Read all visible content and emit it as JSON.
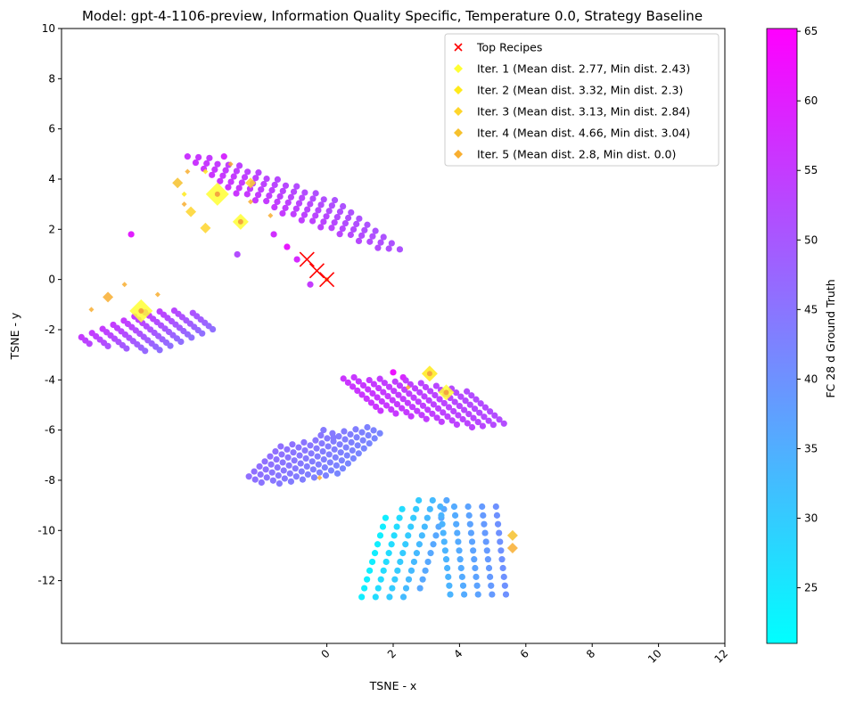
{
  "chart_data": {
    "type": "scatter",
    "title": "Model: gpt-4-1106-preview, Information Quality Specific, Temperature 0.0, Strategy Baseline",
    "xlabel": "TSNE - x",
    "ylabel": "TSNE - y",
    "xlim": [
      -8,
      12
    ],
    "ylim": [
      -14.5,
      10
    ],
    "xticks": [
      0,
      2,
      4,
      6,
      8,
      10,
      12
    ],
    "yticks": [
      -12,
      -10,
      -8,
      -6,
      -4,
      -2,
      0,
      2,
      4,
      6,
      8,
      10
    ],
    "grid": false,
    "legend_position": "top-right",
    "colorbar": {
      "label": "FC 28 d Ground Truth",
      "min": 21,
      "max": 65.2,
      "ticks": [
        25,
        30,
        35,
        40,
        45,
        50,
        55,
        60,
        65
      ],
      "colormap": "cool",
      "color_min": "#00ffff",
      "color_max": "#ff00ff"
    },
    "legend": [
      {
        "label": "Top Recipes",
        "marker": "x",
        "color": "#ff0000"
      },
      {
        "label": "Iter. 1 (Mean dist. 2.77, Min dist. 2.43)",
        "marker": "diamond",
        "color": "#ffff33"
      },
      {
        "label": "Iter. 2 (Mean dist. 3.32, Min dist. 2.3)",
        "marker": "diamond",
        "color": "#ffea1a"
      },
      {
        "label": "Iter. 3 (Mean dist. 3.13, Min dist. 2.84)",
        "marker": "diamond",
        "color": "#fed52b"
      },
      {
        "label": "Iter. 4 (Mean dist. 4.66, Min dist. 3.04)",
        "marker": "diamond",
        "color": "#f6c12c"
      },
      {
        "label": "Iter. 5 (Mean dist. 2.8, Min dist. 0.0)",
        "marker": "diamond",
        "color": "#f8ae30"
      }
    ],
    "clusters": [
      {
        "name": "left-band",
        "origin": [
          -7.4,
          -2.3
        ],
        "u": [
          0.32,
          0.165
        ],
        "v": [
          0.12,
          -0.13
        ],
        "nu": 10,
        "nv": 10,
        "start": [
          0,
          0,
          0,
          1,
          1,
          2,
          2,
          3,
          3,
          4
        ],
        "end": [
          6,
          7,
          8,
          8,
          9,
          9,
          9,
          9,
          9,
          9
        ],
        "fval_start": 55,
        "fval_end": 46
      },
      {
        "name": "upper-block",
        "origin": [
          -4.2,
          4.9
        ],
        "u": [
          0.245,
          -0.245
        ],
        "v": [
          0.33,
          -0.03
        ],
        "nu": 15,
        "nv": 10,
        "start": [
          0,
          0,
          0,
          1,
          1,
          2,
          3,
          4,
          5,
          6
        ],
        "end": [
          6,
          7,
          9,
          10,
          11,
          12,
          13,
          14,
          14,
          14
        ],
        "fval_start": 56,
        "fval_end": 51
      },
      {
        "name": "mid-right-block",
        "origin": [
          0.5,
          -3.95
        ],
        "u": [
          0.14,
          -0.16
        ],
        "v": [
          0.32,
          0.05
        ],
        "nu": 15,
        "nv": 10,
        "start": [
          0,
          0,
          1,
          1,
          2,
          2,
          3,
          4,
          5,
          6
        ],
        "end": [
          8,
          9,
          10,
          11,
          12,
          13,
          14,
          14,
          14,
          14
        ],
        "fval_start": 56,
        "fval_end": 52
      },
      {
        "name": "lower-left-block",
        "origin": [
          -2.35,
          -7.85
        ],
        "u": [
          0.16,
          0.2
        ],
        "v": [
          0.19,
          -0.12
        ],
        "nu": 15,
        "nv": 10,
        "start": [
          0,
          0,
          0,
          1,
          1,
          2,
          3,
          4,
          5,
          6
        ],
        "end": [
          6,
          7,
          8,
          10,
          11,
          12,
          13,
          14,
          14,
          14
        ],
        "fval_start": 46,
        "fval_end": 42
      },
      {
        "name": "bottom-arc-a",
        "origin": [
          1.05,
          -12.65
        ],
        "u": [
          0.08,
          0.35
        ],
        "v": [
          0.42,
          0.0
        ],
        "nu": 12,
        "nv": 5,
        "start": [
          0,
          0,
          0,
          0,
          1
        ],
        "end": [
          9,
          10,
          11,
          11,
          11
        ],
        "fval_start": 24,
        "fval_end": 36
      },
      {
        "name": "bottom-arc-b",
        "origin": [
          3.72,
          -12.55
        ],
        "u": [
          -0.03,
          0.35
        ],
        "v": [
          0.42,
          0.0
        ],
        "nu": 11,
        "nv": 5,
        "start": [
          0,
          0,
          0,
          0,
          0
        ],
        "end": [
          10,
          10,
          10,
          10,
          10
        ],
        "fval_start": 34,
        "fval_end": 40
      }
    ],
    "extra_points": [
      {
        "x": -5.9,
        "y": 1.8,
        "value": 60
      },
      {
        "x": -3.1,
        "y": 4.9,
        "value": 58
      },
      {
        "x": -1.2,
        "y": 1.3,
        "value": 61
      },
      {
        "x": -0.5,
        "y": -0.2,
        "value": 55
      },
      {
        "x": -0.9,
        "y": 0.8,
        "value": 58
      },
      {
        "x": -2.7,
        "y": 1.0,
        "value": 52
      },
      {
        "x": -1.6,
        "y": 1.8,
        "value": 57
      },
      {
        "x": 2.0,
        "y": -3.7,
        "value": 62
      },
      {
        "x": 2.3,
        "y": -3.9,
        "value": 58
      },
      {
        "x": -0.1,
        "y": -6.0,
        "value": 44
      },
      {
        "x": 0.2,
        "y": -6.3,
        "value": 44
      }
    ],
    "top_recipes": [
      {
        "x": -0.6,
        "y": 0.8
      },
      {
        "x": -0.3,
        "y": 0.35
      },
      {
        "x": 0.0,
        "y": 0.0
      }
    ],
    "iterations": [
      {
        "iter": 1,
        "color": "#ffff33",
        "points": [
          {
            "x": -5.6,
            "y": -1.25,
            "size": "large"
          },
          {
            "x": -3.3,
            "y": 3.4,
            "size": "large"
          },
          {
            "x": -2.6,
            "y": 2.3,
            "size": "medium"
          },
          {
            "x": 3.6,
            "y": -4.5,
            "size": "medium"
          }
        ]
      },
      {
        "iter": 2,
        "color": "#ffea1a",
        "points": [
          {
            "x": -3.66,
            "y": 4.3,
            "size": "tiny"
          },
          {
            "x": -4.3,
            "y": 3.4,
            "size": "tiny"
          },
          {
            "x": 3.1,
            "y": -3.75,
            "size": "medium"
          }
        ]
      },
      {
        "iter": 3,
        "color": "#fed52b",
        "points": [
          {
            "x": -4.1,
            "y": 2.7,
            "size": "small"
          },
          {
            "x": -3.66,
            "y": 2.05,
            "size": "small"
          },
          {
            "x": -2.3,
            "y": 3.85,
            "size": "small"
          }
        ]
      },
      {
        "iter": 4,
        "color": "#f6c12c",
        "points": [
          {
            "x": -4.5,
            "y": 3.85,
            "size": "small"
          },
          {
            "x": 5.6,
            "y": -10.2,
            "size": "small"
          }
        ]
      },
      {
        "iter": 5,
        "color": "#f8ae30",
        "points": [
          {
            "x": -6.6,
            "y": -0.7,
            "size": "small"
          },
          {
            "x": -6.1,
            "y": -0.2,
            "size": "tiny"
          },
          {
            "x": -7.1,
            "y": -1.2,
            "size": "tiny"
          },
          {
            "x": -5.1,
            "y": -0.6,
            "size": "tiny"
          },
          {
            "x": -4.2,
            "y": 4.3,
            "size": "tiny"
          },
          {
            "x": -4.3,
            "y": 3.0,
            "size": "tiny"
          },
          {
            "x": -2.9,
            "y": 4.6,
            "size": "tiny"
          },
          {
            "x": -2.3,
            "y": 3.1,
            "size": "tiny"
          },
          {
            "x": -1.7,
            "y": 2.55,
            "size": "tiny"
          },
          {
            "x": 0.0,
            "y": 0.0,
            "size": "tiny"
          },
          {
            "x": 2.45,
            "y": -4.3,
            "size": "tiny"
          },
          {
            "x": -0.22,
            "y": -7.9,
            "size": "tiny"
          },
          {
            "x": 5.6,
            "y": -10.7,
            "size": "small"
          }
        ]
      }
    ]
  }
}
